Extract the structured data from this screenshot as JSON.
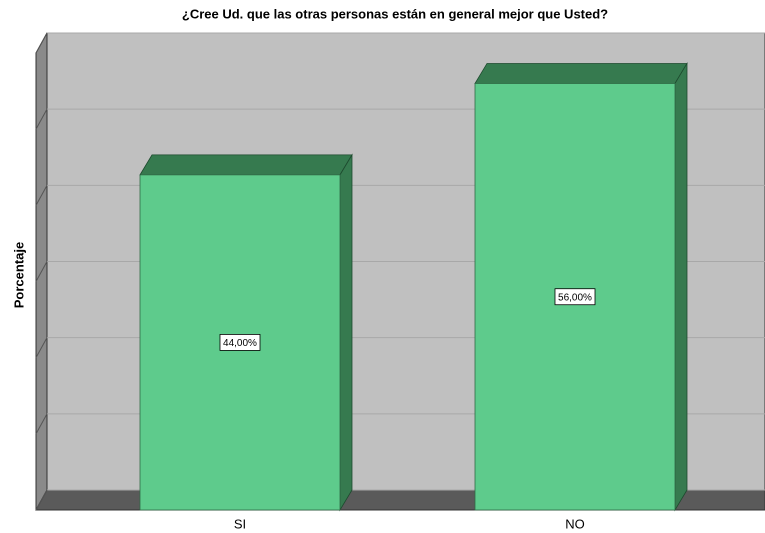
{
  "chart_data": {
    "type": "bar3d",
    "title": "¿Cree Ud. que las otras personas están en general mejor que Usted?",
    "y_label": "Porcentaje",
    "categories": [
      "SI",
      "NO"
    ],
    "values": [
      44,
      56
    ],
    "value_labels": [
      "44,00%",
      "56,00%"
    ],
    "color": "#5ecb8c",
    "ylim": [
      0,
      60
    ],
    "yticks": [
      0,
      10,
      20,
      30,
      40,
      50,
      60
    ],
    "grid": true
  }
}
